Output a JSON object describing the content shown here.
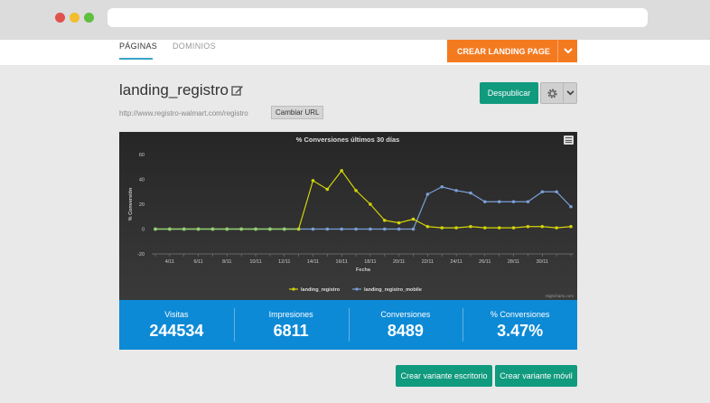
{
  "tabs": [
    {
      "label": "PÁGINAS",
      "active": true
    },
    {
      "label": "DOMINIOS",
      "active": false
    }
  ],
  "cta": {
    "label": "CREAR LANDING PAGE"
  },
  "page": {
    "title": "landing_registro",
    "url": "http://www.registro-walmart.com/registro",
    "change_url_label": "Cambiar URL",
    "unpublish_label": "Despublicar"
  },
  "chart_data": {
    "type": "line",
    "title": "% Conversiones últimos 30 días",
    "xlabel": "Fecha",
    "ylabel": "% Conversión",
    "yticks": [
      -20,
      0,
      20,
      40,
      60
    ],
    "ylim": [
      -20,
      60
    ],
    "xticks": [
      "4/11",
      "6/11",
      "8/11",
      "10/11",
      "12/11",
      "14/11",
      "16/11",
      "18/11",
      "20/11",
      "22/11",
      "24/11",
      "26/11",
      "28/11",
      "30/11"
    ],
    "categories": [
      "3/11",
      "4/11",
      "5/11",
      "6/11",
      "7/11",
      "8/11",
      "9/11",
      "10/11",
      "11/11",
      "12/11",
      "13/11",
      "14/11",
      "15/11",
      "16/11",
      "17/11",
      "18/11",
      "19/11",
      "20/11",
      "21/11",
      "22/11",
      "23/11",
      "24/11",
      "25/11",
      "26/11",
      "27/11",
      "28/11",
      "29/11",
      "30/11",
      "1/12",
      "2/12"
    ],
    "series": [
      {
        "name": "landing_registro",
        "color": "#d4d40a",
        "values": [
          0,
          0,
          0,
          0,
          0,
          0,
          0,
          0,
          0,
          0,
          0,
          39,
          32,
          47,
          31,
          20,
          7,
          5,
          8,
          2,
          1,
          1,
          2,
          1,
          1,
          1,
          2,
          2,
          1,
          2
        ]
      },
      {
        "name": "landing_registro_mobile",
        "color": "#7b9fd6",
        "values": [
          0,
          0,
          0,
          0,
          0,
          0,
          0,
          0,
          0,
          0,
          0,
          0,
          0,
          0,
          0,
          0,
          0,
          0,
          0,
          28,
          34,
          31,
          29,
          22,
          22,
          22,
          22,
          30,
          30,
          18
        ]
      }
    ],
    "legend": "bottom-center",
    "credits": "Highcharts.com",
    "grid": false
  },
  "stats": [
    {
      "label": "Visitas",
      "value": "244534"
    },
    {
      "label": "Impresiones",
      "value": "6811"
    },
    {
      "label": "Conversiones",
      "value": "8489"
    },
    {
      "label": "% Conversiones",
      "value": "3.47%"
    }
  ],
  "buttons": {
    "desktop_variant": "Crear variante escritorio",
    "mobile_variant": "Crear variante móvil"
  },
  "icons": [
    "edit-icon",
    "gear-icon",
    "chevron-down-icon",
    "menu-icon"
  ]
}
